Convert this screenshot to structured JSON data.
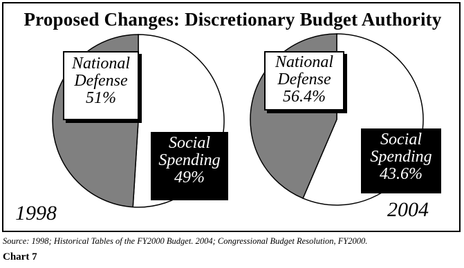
{
  "chart_data": [
    {
      "type": "pie",
      "title": "Proposed Changes: Discretionary Budget Authority",
      "label": "1998",
      "slices": [
        {
          "name": "National Defense",
          "value": 51,
          "value_label": "51%",
          "color": "#ffffff"
        },
        {
          "name": "Social Spending",
          "value": 49,
          "value_label": "49%",
          "color": "#808080"
        }
      ]
    },
    {
      "type": "pie",
      "title": "Proposed Changes: Discretionary Budget Authority",
      "label": "2004",
      "slices": [
        {
          "name": "National Defense",
          "value": 56.4,
          "value_label": "56.4%",
          "color": "#ffffff"
        },
        {
          "name": "Social Spending",
          "value": 43.6,
          "value_label": "43.6%",
          "color": "#808080"
        }
      ]
    }
  ],
  "labels": {
    "defense_line1": "National",
    "defense_line2": "Defense",
    "social_line1": "Social",
    "social_line2": "Spending"
  },
  "source": "Source: 1998; Historical Tables of the FY2000 Budget. 2004; Congressional Budget Resolution, FY2000.",
  "chart_number": "Chart 7",
  "colors": {
    "white_slice": "#ffffff",
    "gray_slice": "#808080",
    "outline": "#000000"
  }
}
